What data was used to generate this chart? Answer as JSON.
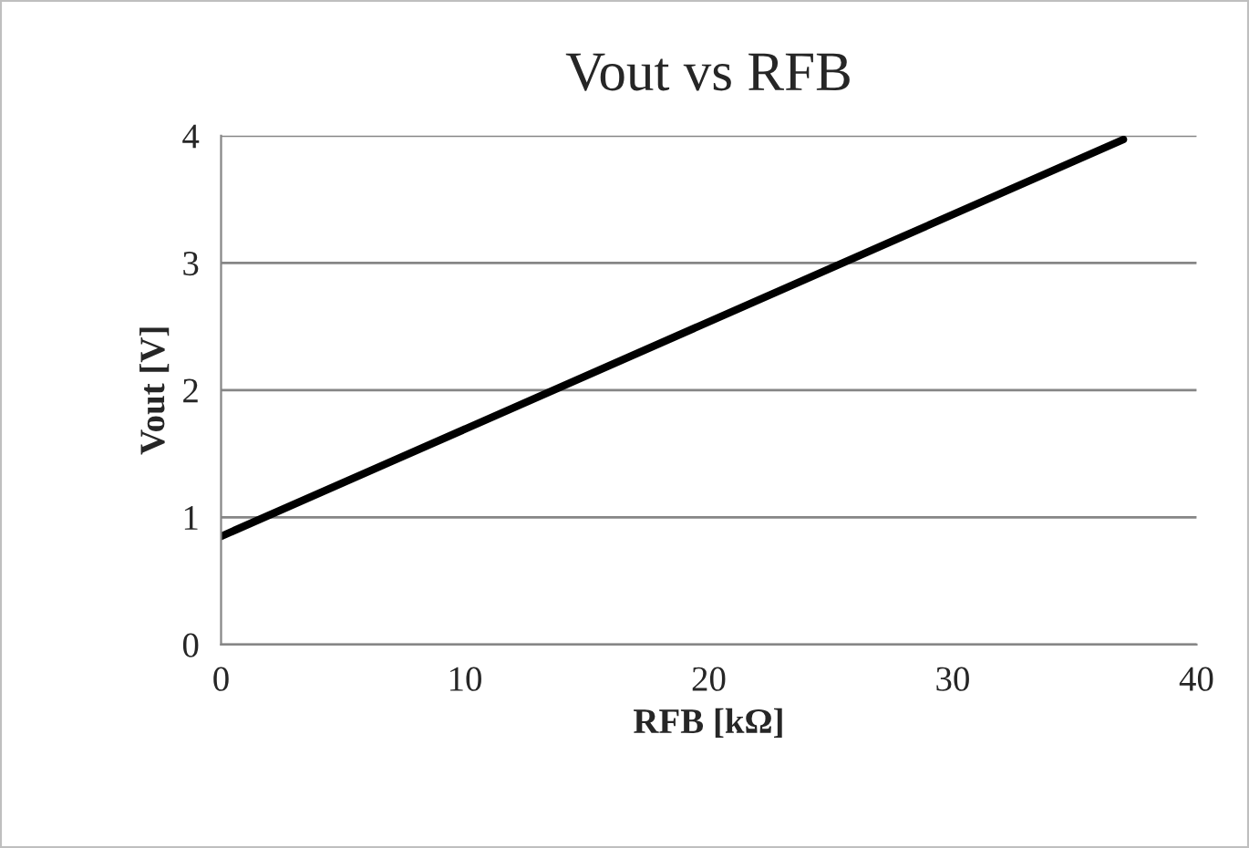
{
  "chart_data": {
    "type": "line",
    "title": "Vout vs RFB",
    "xlabel": "RFB [kΩ]",
    "ylabel": "Vout [V]",
    "series": [
      {
        "color": "#000000",
        "x": [
          0,
          37
        ],
        "values": [
          0.85,
          3.97
        ]
      }
    ],
    "xlim": [
      0,
      40
    ],
    "xticks": [
      0,
      10,
      20,
      30,
      40
    ],
    "ylim": [
      0,
      4
    ],
    "yticks": [
      0,
      1,
      2,
      3,
      4
    ],
    "grid": "y",
    "marker": "none",
    "line_style": "solid"
  }
}
